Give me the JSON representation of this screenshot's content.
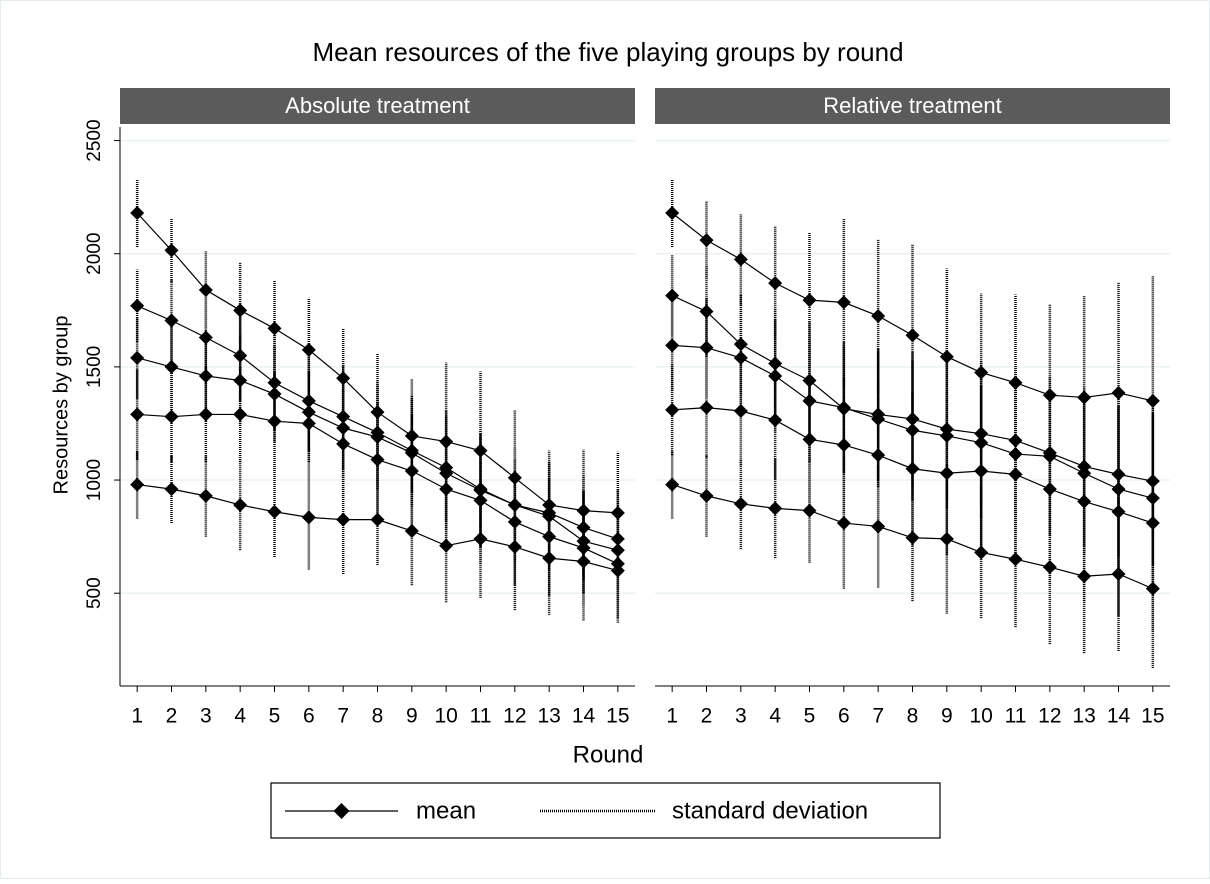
{
  "title": "Mean resources of the five playing groups by round",
  "y_label": "Resources by group",
  "x_label": "Round",
  "legend": [
    "mean",
    "standard deviation"
  ],
  "chart_data": [
    {
      "type": "line",
      "title": "Absolute treatment",
      "x": [
        1,
        2,
        3,
        4,
        5,
        6,
        7,
        8,
        9,
        10,
        11,
        12,
        13,
        14,
        15
      ],
      "xlim": [
        0.5,
        15.5
      ],
      "xticks": [
        1,
        2,
        3,
        4,
        5,
        6,
        7,
        8,
        9,
        10,
        11,
        12,
        13,
        14,
        15
      ],
      "ylim": [
        90,
        2560
      ],
      "yticks": [
        500,
        1000,
        1500,
        2000,
        2500
      ],
      "grid": true,
      "series": [
        {
          "color": "#000000",
          "values": [
            2180,
            2015,
            1840,
            1750,
            1670,
            1575,
            1450,
            1300,
            1195,
            1170,
            1130,
            1010,
            890,
            865,
            855
          ],
          "errors": [
            150,
            140,
            170,
            210,
            210,
            230,
            220,
            260,
            250,
            350,
            350,
            300,
            240,
            270,
            270
          ]
        },
        {
          "color": "#000000",
          "values": [
            1770,
            1705,
            1630,
            1550,
            1430,
            1350,
            1280,
            1210,
            1130,
            1055,
            960,
            890,
            855,
            790,
            740
          ],
          "errors": [
            160,
            180,
            190,
            200,
            210,
            220,
            230,
            230,
            240,
            250,
            260,
            250,
            230,
            230,
            220
          ]
        },
        {
          "color": "#000000",
          "values": [
            1540,
            1500,
            1460,
            1440,
            1380,
            1300,
            1230,
            1190,
            1120,
            1030,
            955,
            890,
            840,
            730,
            690
          ],
          "errors": [
            180,
            190,
            200,
            200,
            210,
            220,
            220,
            230,
            240,
            250,
            250,
            250,
            240,
            230,
            230
          ]
        },
        {
          "color": "#000000",
          "values": [
            1290,
            1280,
            1290,
            1290,
            1260,
            1250,
            1160,
            1090,
            1040,
            960,
            910,
            815,
            750,
            700,
            630
          ],
          "errors": [
            200,
            200,
            210,
            210,
            220,
            230,
            240,
            250,
            250,
            270,
            280,
            280,
            260,
            250,
            240
          ]
        },
        {
          "color": "#000000",
          "values": [
            980,
            960,
            930,
            890,
            860,
            835,
            825,
            825,
            775,
            710,
            740,
            705,
            655,
            640,
            600
          ],
          "errors": [
            150,
            150,
            180,
            200,
            200,
            230,
            240,
            200,
            240,
            250,
            260,
            280,
            250,
            260,
            230
          ]
        }
      ]
    },
    {
      "type": "line",
      "title": "Relative treatment",
      "x": [
        1,
        2,
        3,
        4,
        5,
        6,
        7,
        8,
        9,
        10,
        11,
        12,
        13,
        14,
        15
      ],
      "xlim": [
        0.5,
        15.5
      ],
      "xticks": [
        1,
        2,
        3,
        4,
        5,
        6,
        7,
        8,
        9,
        10,
        11,
        12,
        13,
        14,
        15
      ],
      "ylim": [
        90,
        2560
      ],
      "yticks": [
        500,
        1000,
        1500,
        2000,
        2500
      ],
      "grid": true,
      "series": [
        {
          "color": "#000000",
          "values": [
            2180,
            2060,
            1975,
            1870,
            1795,
            1785,
            1725,
            1640,
            1545,
            1475,
            1430,
            1375,
            1365,
            1385,
            1350
          ],
          "errors": [
            150,
            170,
            200,
            250,
            300,
            370,
            340,
            400,
            390,
            350,
            390,
            400,
            450,
            490,
            550
          ]
        },
        {
          "color": "#000000",
          "values": [
            1815,
            1745,
            1600,
            1515,
            1440,
            1315,
            1290,
            1270,
            1225,
            1205,
            1175,
            1120,
            1060,
            1025,
            995
          ],
          "errors": [
            180,
            200,
            220,
            240,
            260,
            280,
            290,
            300,
            310,
            320,
            330,
            340,
            350,
            360,
            370
          ]
        },
        {
          "color": "#000000",
          "values": [
            1595,
            1585,
            1540,
            1460,
            1350,
            1320,
            1270,
            1220,
            1195,
            1165,
            1115,
            1105,
            1030,
            960,
            920
          ],
          "errors": [
            200,
            220,
            230,
            250,
            270,
            290,
            300,
            310,
            320,
            330,
            340,
            350,
            360,
            370,
            380
          ]
        },
        {
          "color": "#000000",
          "values": [
            1310,
            1320,
            1305,
            1265,
            1180,
            1155,
            1110,
            1050,
            1030,
            1040,
            1025,
            960,
            905,
            860,
            810
          ],
          "errors": [
            200,
            220,
            240,
            260,
            280,
            300,
            320,
            340,
            360,
            380,
            400,
            420,
            440,
            460,
            480
          ]
        },
        {
          "color": "#000000",
          "values": [
            980,
            930,
            895,
            875,
            865,
            810,
            795,
            745,
            740,
            680,
            650,
            615,
            575,
            585,
            520
          ],
          "errors": [
            150,
            180,
            200,
            220,
            230,
            290,
            270,
            280,
            330,
            290,
            300,
            340,
            340,
            340,
            350
          ]
        }
      ]
    }
  ]
}
